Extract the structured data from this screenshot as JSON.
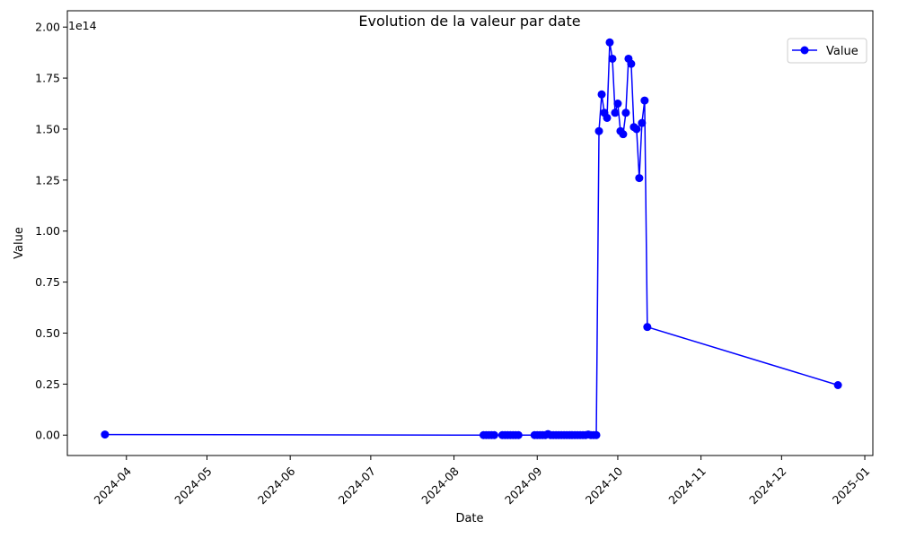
{
  "chart_data": {
    "type": "line",
    "title": "Evolution de la valeur par date",
    "xlabel": "Date",
    "ylabel": "Value",
    "y_offset_text": "1e14",
    "y_scale": 100000000000000.0,
    "xlim": [
      "2024-03-10",
      "2025-01-04"
    ],
    "ylim": [
      -10000000000000.0,
      208000000000000.0
    ],
    "grid": false,
    "legend_position": "top-right",
    "x_ticks": [
      "2024-04",
      "2024-05",
      "2024-06",
      "2024-07",
      "2024-08",
      "2024-09",
      "2024-10",
      "2024-11",
      "2024-12",
      "2025-01"
    ],
    "x_tick_dates": [
      "2024-04-01",
      "2024-05-01",
      "2024-06-01",
      "2024-07-01",
      "2024-08-01",
      "2024-09-01",
      "2024-10-01",
      "2024-11-01",
      "2024-12-01",
      "2025-01-01"
    ],
    "y_ticks": [
      "0.00",
      "0.25",
      "0.50",
      "0.75",
      "1.00",
      "1.25",
      "1.50",
      "1.75",
      "2.00"
    ],
    "y_tick_values": [
      0,
      25000000000000.0,
      50000000000000.0,
      75000000000000.0,
      100000000000000.0,
      125000000000000.0,
      150000000000000.0,
      175000000000000.0,
      200000000000000.0
    ],
    "series": [
      {
        "name": "Value",
        "color": "#0000ff",
        "marker": "circle",
        "points": [
          {
            "x": "2024-03-24",
            "y": 300000000000.0
          },
          {
            "x": "2024-08-12",
            "y": 0
          },
          {
            "x": "2024-08-13",
            "y": 0
          },
          {
            "x": "2024-08-14",
            "y": 0
          },
          {
            "x": "2024-08-15",
            "y": 0
          },
          {
            "x": "2024-08-16",
            "y": 0
          },
          {
            "x": "2024-08-19",
            "y": 0
          },
          {
            "x": "2024-08-20",
            "y": 0
          },
          {
            "x": "2024-08-21",
            "y": 0
          },
          {
            "x": "2024-08-22",
            "y": 0
          },
          {
            "x": "2024-08-23",
            "y": 0
          },
          {
            "x": "2024-08-24",
            "y": 0
          },
          {
            "x": "2024-08-25",
            "y": 0
          },
          {
            "x": "2024-08-31",
            "y": 0
          },
          {
            "x": "2024-09-01",
            "y": 0
          },
          {
            "x": "2024-09-02",
            "y": 0
          },
          {
            "x": "2024-09-03",
            "y": 0
          },
          {
            "x": "2024-09-04",
            "y": 0
          },
          {
            "x": "2024-09-05",
            "y": 500000000000.0
          },
          {
            "x": "2024-09-06",
            "y": 0
          },
          {
            "x": "2024-09-07",
            "y": 0
          },
          {
            "x": "2024-09-08",
            "y": 0
          },
          {
            "x": "2024-09-09",
            "y": 0
          },
          {
            "x": "2024-09-10",
            "y": 0
          },
          {
            "x": "2024-09-11",
            "y": 0
          },
          {
            "x": "2024-09-12",
            "y": 0
          },
          {
            "x": "2024-09-13",
            "y": 0
          },
          {
            "x": "2024-09-14",
            "y": 0
          },
          {
            "x": "2024-09-15",
            "y": 0
          },
          {
            "x": "2024-09-16",
            "y": 0
          },
          {
            "x": "2024-09-17",
            "y": 0
          },
          {
            "x": "2024-09-18",
            "y": 0
          },
          {
            "x": "2024-09-19",
            "y": 0
          },
          {
            "x": "2024-09-20",
            "y": 300000000000.0
          },
          {
            "x": "2024-09-21",
            "y": 0
          },
          {
            "x": "2024-09-22",
            "y": 0
          },
          {
            "x": "2024-09-23",
            "y": 0
          },
          {
            "x": "2024-09-24",
            "y": 149000000000000.0
          },
          {
            "x": "2024-09-25",
            "y": 167000000000000.0
          },
          {
            "x": "2024-09-26",
            "y": 158000000000000.0
          },
          {
            "x": "2024-09-27",
            "y": 155500000000000.0
          },
          {
            "x": "2024-09-28",
            "y": 192500000000000.0
          },
          {
            "x": "2024-09-29",
            "y": 184500000000000.0
          },
          {
            "x": "2024-09-30",
            "y": 158000000000000.0
          },
          {
            "x": "2024-10-01",
            "y": 162500000000000.0
          },
          {
            "x": "2024-10-02",
            "y": 149000000000000.0
          },
          {
            "x": "2024-10-03",
            "y": 147500000000000.0
          },
          {
            "x": "2024-10-04",
            "y": 158000000000000.0
          },
          {
            "x": "2024-10-05",
            "y": 184500000000000.0
          },
          {
            "x": "2024-10-06",
            "y": 182000000000000.0
          },
          {
            "x": "2024-10-07",
            "y": 151000000000000.0
          },
          {
            "x": "2024-10-08",
            "y": 150000000000000.0
          },
          {
            "x": "2024-10-09",
            "y": 126000000000000.0
          },
          {
            "x": "2024-10-10",
            "y": 153000000000000.0
          },
          {
            "x": "2024-10-11",
            "y": 164000000000000.0
          },
          {
            "x": "2024-10-12",
            "y": 53000000000000.0
          },
          {
            "x": "2024-12-22",
            "y": 24500000000000.0
          }
        ]
      }
    ]
  }
}
